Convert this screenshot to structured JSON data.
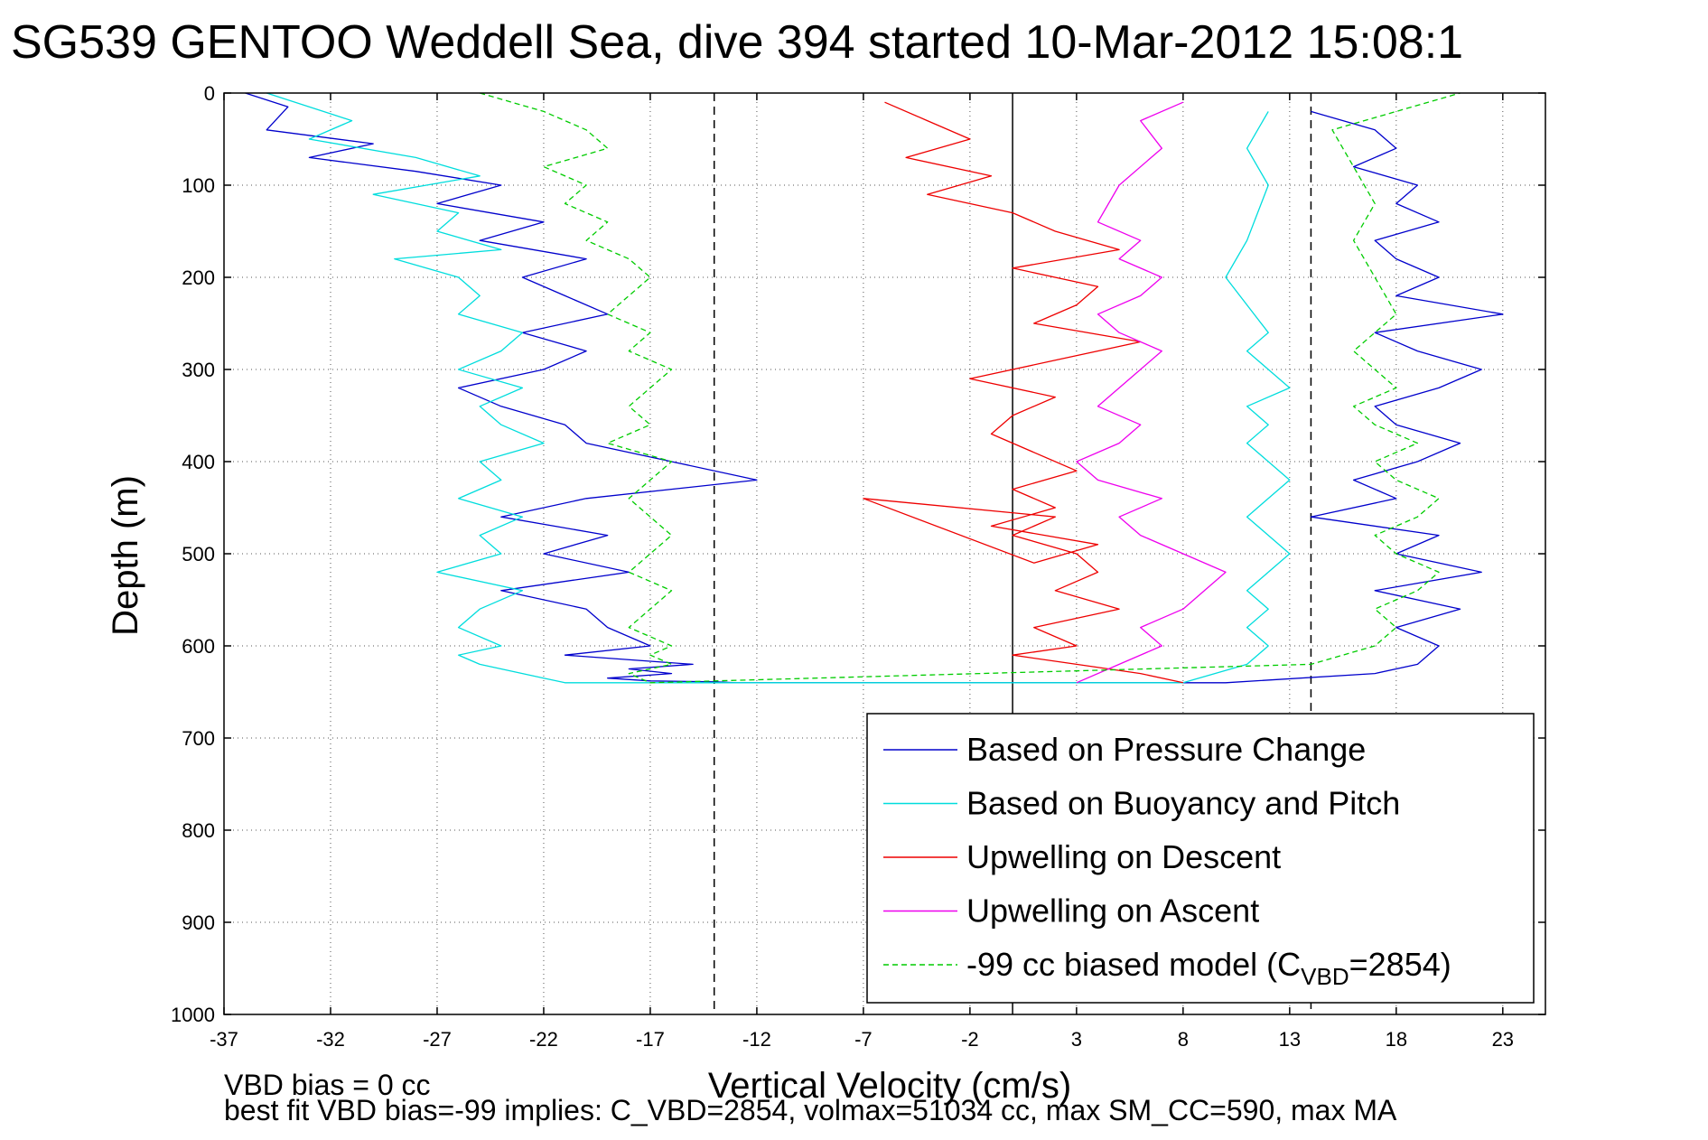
{
  "chart_data": {
    "type": "line",
    "title": "SG539 GENTOO Weddell Sea, dive 394 started 10-Mar-2012 15:08:1",
    "xlabel": "Vertical Velocity (cm/s)",
    "ylabel": "Depth (m)",
    "xlim": [
      -37,
      25
    ],
    "ylim": [
      0,
      1000
    ],
    "y_reversed": true,
    "grid": "dotted",
    "legend_position": "lower-right",
    "x_ticks": [
      "-37",
      "-32",
      "-27",
      "-22",
      "-17",
      "-12",
      "-7",
      "-2",
      "3",
      "8",
      "13",
      "18",
      "23"
    ],
    "y_ticks": [
      "0",
      "100",
      "200",
      "300",
      "400",
      "500",
      "600",
      "700",
      "800",
      "900",
      "1000"
    ],
    "reference_lines": [
      {
        "x": -14,
        "style": "dashed",
        "color": "#000000"
      },
      {
        "x": 0,
        "style": "solid",
        "color": "#000000"
      },
      {
        "x": 14,
        "style": "dashed",
        "color": "#000000"
      }
    ],
    "series": [
      {
        "name": "Based on Pressure Change",
        "color": "#0000cc",
        "style": "solid",
        "x": [
          -36,
          -34,
          -35,
          -30,
          -33,
          -28,
          -24,
          -27,
          -22,
          -25,
          -20,
          -23,
          -21,
          -19,
          -23,
          -20,
          -22,
          -26,
          -24,
          -21,
          -20,
          -16,
          -12,
          -20,
          -24,
          -19,
          -22,
          -18,
          -24,
          -20,
          -19,
          -17,
          -21,
          -15,
          -18,
          -16,
          -19,
          -17,
          -14,
          -13,
          -12,
          10,
          17,
          19,
          20,
          18,
          21,
          17,
          22,
          18,
          20,
          14,
          18,
          16,
          19,
          21,
          18,
          17,
          20,
          22,
          19,
          17,
          23,
          18,
          20,
          18,
          17,
          20,
          18,
          19,
          16,
          18,
          17,
          14
        ],
        "y": [
          0,
          15,
          40,
          55,
          70,
          85,
          100,
          120,
          140,
          160,
          180,
          200,
          220,
          240,
          260,
          280,
          300,
          320,
          340,
          360,
          380,
          400,
          420,
          440,
          460,
          480,
          500,
          520,
          540,
          560,
          580,
          600,
          610,
          620,
          625,
          630,
          635,
          638,
          639,
          640,
          640,
          640,
          630,
          620,
          600,
          580,
          560,
          540,
          520,
          500,
          480,
          460,
          440,
          420,
          400,
          380,
          360,
          340,
          320,
          300,
          280,
          260,
          240,
          220,
          200,
          180,
          160,
          140,
          120,
          100,
          80,
          60,
          40,
          20
        ]
      },
      {
        "name": "Based on Buoyancy and Pitch",
        "color": "#00dddd",
        "style": "solid",
        "x": [
          -35,
          -31,
          -33,
          -28,
          -25,
          -30,
          -26,
          -27,
          -24,
          -29,
          -26,
          -25,
          -26,
          -23,
          -24,
          -26,
          -23,
          -25,
          -24,
          -22,
          -25,
          -24,
          -26,
          -23,
          -25,
          -24,
          -27,
          -23,
          -25,
          -26,
          -24,
          -26,
          -25,
          -23,
          -22,
          -21,
          8,
          11,
          12,
          11,
          12,
          11,
          12,
          13,
          12,
          11,
          12,
          13,
          12,
          11,
          12,
          11,
          13,
          12,
          11,
          12,
          10,
          11,
          12,
          11,
          12
        ],
        "y": [
          0,
          30,
          50,
          70,
          90,
          110,
          130,
          150,
          170,
          180,
          200,
          220,
          240,
          260,
          280,
          300,
          320,
          340,
          360,
          380,
          400,
          420,
          440,
          460,
          480,
          500,
          520,
          540,
          560,
          580,
          600,
          610,
          620,
          630,
          635,
          640,
          640,
          620,
          600,
          580,
          560,
          540,
          520,
          500,
          480,
          460,
          440,
          420,
          400,
          380,
          360,
          340,
          320,
          300,
          280,
          260,
          200,
          160,
          100,
          60,
          20
        ]
      },
      {
        "name": "Upwelling on Descent",
        "color": "#ee0000",
        "style": "solid",
        "x": [
          -6,
          -4,
          -2,
          -5,
          -1,
          -4,
          0,
          2,
          5,
          0,
          4,
          3,
          1,
          6,
          2,
          -2,
          2,
          0,
          -1,
          1,
          3,
          0,
          2,
          -1,
          4,
          1,
          -7,
          2,
          0,
          3,
          4,
          2,
          5,
          1,
          3,
          0,
          3,
          6,
          8
        ],
        "y": [
          10,
          30,
          50,
          70,
          90,
          110,
          130,
          150,
          170,
          190,
          210,
          230,
          250,
          270,
          290,
          310,
          330,
          350,
          370,
          390,
          410,
          430,
          450,
          470,
          490,
          510,
          440,
          460,
          480,
          500,
          520,
          540,
          560,
          580,
          600,
          610,
          620,
          630,
          640
        ]
      },
      {
        "name": "Upwelling on Ascent",
        "color": "#ee00ee",
        "style": "solid",
        "x": [
          3,
          5,
          7,
          6,
          8,
          9,
          10,
          8,
          6,
          5,
          7,
          4,
          3,
          5,
          6,
          4,
          5,
          6,
          7,
          5,
          4,
          6,
          7,
          5,
          6,
          4,
          5,
          7,
          6,
          8
        ],
        "y": [
          640,
          620,
          600,
          580,
          560,
          540,
          520,
          500,
          480,
          460,
          440,
          420,
          400,
          380,
          360,
          340,
          320,
          300,
          280,
          260,
          240,
          220,
          200,
          180,
          160,
          140,
          100,
          60,
          30,
          10
        ]
      },
      {
        "name": "-99 cc biased model (C_VBD=2854)",
        "color": "#00cc00",
        "style": "dashed",
        "x": [
          -25,
          -22,
          -20,
          -19,
          -22,
          -20,
          -21,
          -19,
          -20,
          -18,
          -17,
          -18,
          -19,
          -17,
          -18,
          -16,
          -17,
          -18,
          -17,
          -19,
          -16,
          -17,
          -18,
          -17,
          -16,
          -17,
          -18,
          -16,
          -17,
          -18,
          -16,
          -17,
          -16,
          -18,
          -17,
          14,
          17,
          18,
          17,
          19,
          20,
          18,
          17,
          19,
          20,
          18,
          17,
          19,
          17,
          16,
          18,
          17,
          16,
          18,
          17,
          16,
          17,
          16,
          15,
          21
        ],
        "y": [
          0,
          20,
          40,
          60,
          80,
          100,
          120,
          140,
          160,
          180,
          200,
          220,
          240,
          260,
          280,
          300,
          320,
          340,
          360,
          380,
          400,
          420,
          440,
          460,
          480,
          500,
          520,
          540,
          560,
          580,
          600,
          610,
          620,
          630,
          640,
          620,
          600,
          580,
          560,
          540,
          520,
          500,
          480,
          460,
          440,
          420,
          400,
          380,
          360,
          340,
          320,
          300,
          280,
          240,
          200,
          160,
          120,
          80,
          40,
          0
        ]
      }
    ],
    "legend_entries": [
      {
        "label": "Based on Pressure Change",
        "color": "#0000cc",
        "style": "solid"
      },
      {
        "label": "Based on Buoyancy and Pitch",
        "color": "#00dddd",
        "style": "solid"
      },
      {
        "label": "Upwelling on Descent",
        "color": "#ee0000",
        "style": "solid"
      },
      {
        "label": "Upwelling on Ascent",
        "color": "#ee00ee",
        "style": "solid"
      },
      {
        "label_prefix": "-99 cc biased model (C",
        "label_sub": "VBD",
        "label_suffix": "=2854)",
        "color": "#00cc00",
        "style": "dashed"
      }
    ],
    "footnotes": [
      "VBD bias = 0 cc",
      "best fit VBD bias=-99 implies: C_VBD=2854, volmax=51034 cc, max SM_CC=590, max MA"
    ]
  }
}
